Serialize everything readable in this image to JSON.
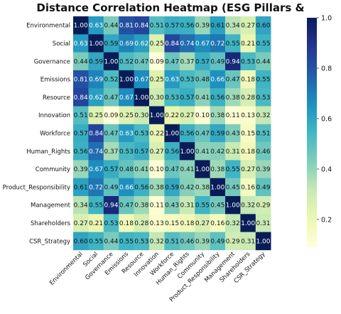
{
  "chart_data": {
    "type": "heatmap",
    "title": "Distance Correlation Heatmap (ESG Pillars & Subcategories)",
    "xlabel": "",
    "ylabel": "",
    "rows": [
      "Environmental",
      "Social",
      "Governance",
      "Emissions",
      "Resource",
      "Innovation",
      "Workforce",
      "Human_Rights",
      "Community",
      "Product_Responsibility",
      "Management",
      "Shareholders",
      "CSR_Strategy"
    ],
    "columns": [
      "Environmental",
      "Social",
      "Governance",
      "Emissions",
      "Resource",
      "Innovation",
      "Workforce",
      "Human_Rights",
      "Community",
      "Product_Responsibility",
      "Management",
      "Shareholders",
      "CSR_Strategy"
    ],
    "values": [
      [
        1.0,
        0.63,
        0.44,
        0.81,
        0.84,
        0.51,
        0.57,
        0.56,
        0.39,
        0.61,
        0.34,
        0.27,
        0.6
      ],
      [
        0.63,
        1.0,
        0.59,
        0.69,
        0.62,
        0.25,
        0.84,
        0.74,
        0.67,
        0.72,
        0.55,
        0.21,
        0.55
      ],
      [
        0.44,
        0.59,
        1.0,
        0.52,
        0.47,
        0.09,
        0.47,
        0.37,
        0.57,
        0.49,
        0.94,
        0.53,
        0.44
      ],
      [
        0.81,
        0.69,
        0.52,
        1.0,
        0.67,
        0.25,
        0.63,
        0.53,
        0.48,
        0.66,
        0.47,
        0.18,
        0.55
      ],
      [
        0.84,
        0.62,
        0.47,
        0.67,
        1.0,
        0.3,
        0.53,
        0.57,
        0.41,
        0.56,
        0.38,
        0.28,
        0.53
      ],
      [
        0.51,
        0.25,
        0.09,
        0.25,
        0.3,
        1.0,
        0.22,
        0.27,
        0.1,
        0.38,
        0.11,
        0.13,
        0.32
      ],
      [
        0.57,
        0.84,
        0.47,
        0.63,
        0.53,
        0.22,
        1.0,
        0.56,
        0.47,
        0.59,
        0.43,
        0.15,
        0.51
      ],
      [
        0.56,
        0.74,
        0.37,
        0.53,
        0.57,
        0.27,
        0.56,
        1.0,
        0.41,
        0.42,
        0.31,
        0.18,
        0.46
      ],
      [
        0.39,
        0.67,
        0.57,
        0.48,
        0.41,
        0.1,
        0.47,
        0.41,
        1.0,
        0.38,
        0.55,
        0.27,
        0.39
      ],
      [
        0.61,
        0.72,
        0.49,
        0.66,
        0.56,
        0.38,
        0.59,
        0.42,
        0.38,
        1.0,
        0.45,
        0.16,
        0.49
      ],
      [
        0.34,
        0.55,
        0.94,
        0.47,
        0.38,
        0.11,
        0.43,
        0.31,
        0.55,
        0.45,
        1.0,
        0.32,
        0.29
      ],
      [
        0.27,
        0.21,
        0.53,
        0.18,
        0.28,
        0.13,
        0.15,
        0.18,
        0.27,
        0.16,
        0.32,
        1.0,
        0.31
      ],
      [
        0.6,
        0.55,
        0.44,
        0.55,
        0.53,
        0.32,
        0.51,
        0.46,
        0.39,
        0.49,
        0.29,
        0.31,
        1.0
      ]
    ],
    "value_range": [
      0.09,
      1.0
    ],
    "colormap": "YlGnBu",
    "colorbar": {
      "ticks": [
        0.2,
        0.4,
        0.6,
        0.8,
        1.0
      ],
      "tick_labels": [
        "0.2",
        "0.4",
        "0.6",
        "0.8",
        "1.0"
      ],
      "position": "right"
    },
    "annotations": true,
    "grid": false
  }
}
